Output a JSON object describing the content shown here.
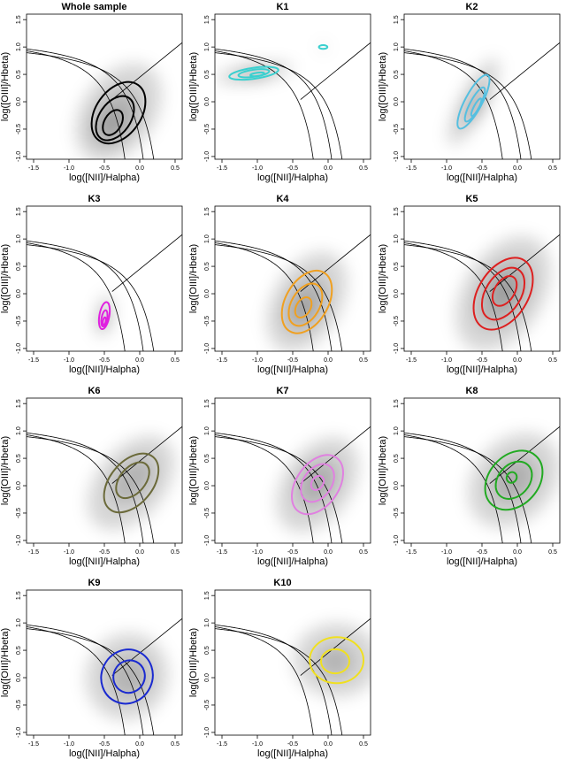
{
  "figure": {
    "xlabel": "log([NII]/Halpha)",
    "ylabel": "log([OIII]/Hbeta)"
  },
  "chart_data": [
    {
      "type": "bpt-density-contour",
      "title": "Whole sample",
      "xlabel": "log([NII]/Halpha)",
      "ylabel": "log([OIII]/Hbeta)",
      "xlim": [
        -1.6,
        0.6
      ],
      "ylim": [
        -1.05,
        1.6
      ],
      "xticks": [
        -1.5,
        -1.0,
        -0.5,
        0.0,
        0.5
      ],
      "yticks": [
        -1.0,
        -0.5,
        0.0,
        0.5,
        1.0,
        1.5
      ],
      "contour_color": "#000000",
      "contours": [
        {
          "cx": -0.3,
          "cy": -0.2,
          "rx": 0.32,
          "ry": 0.62,
          "angle": 35
        },
        {
          "cx": -0.35,
          "cy": -0.3,
          "rx": 0.22,
          "ry": 0.45,
          "angle": 35
        },
        {
          "cx": -0.38,
          "cy": -0.38,
          "rx": 0.12,
          "ry": 0.25,
          "angle": 30
        }
      ]
    },
    {
      "type": "bpt-density-contour",
      "title": "K1",
      "xlabel": "log([NII]/Halpha)",
      "ylabel": "log([OIII]/Hbeta)",
      "xlim": [
        -1.6,
        0.6
      ],
      "ylim": [
        -1.05,
        1.6
      ],
      "xticks": [
        -1.5,
        -1.0,
        -0.5,
        0.0,
        0.5
      ],
      "yticks": [
        -1.0,
        -0.5,
        0.0,
        0.5,
        1.0,
        1.5
      ],
      "contour_color": "#3ad0cf",
      "contours": [
        {
          "cx": -1.05,
          "cy": 0.52,
          "rx": 0.35,
          "ry": 0.1,
          "angle": -8
        },
        {
          "cx": -1.05,
          "cy": 0.52,
          "rx": 0.22,
          "ry": 0.065,
          "angle": -8
        },
        {
          "cx": -1.0,
          "cy": 0.5,
          "rx": 0.1,
          "ry": 0.03,
          "angle": -8
        },
        {
          "cx": -0.07,
          "cy": 1.0,
          "rx": 0.06,
          "ry": 0.035,
          "angle": 0
        }
      ]
    },
    {
      "type": "bpt-density-contour",
      "title": "K2",
      "xlabel": "log([NII]/Halpha)",
      "ylabel": "log([OIII]/Hbeta)",
      "xlim": [
        -1.6,
        0.6
      ],
      "ylim": [
        -1.05,
        1.6
      ],
      "xticks": [
        -1.5,
        -1.0,
        -0.5,
        0.0,
        0.5
      ],
      "yticks": [
        -1.0,
        -0.5,
        0.0,
        0.5,
        1.0,
        1.5
      ],
      "contour_color": "#55bfe0",
      "contours": [
        {
          "cx": -0.62,
          "cy": 0.0,
          "rx": 0.12,
          "ry": 0.55,
          "angle": 28
        },
        {
          "cx": -0.6,
          "cy": -0.05,
          "rx": 0.07,
          "ry": 0.35,
          "angle": 28
        },
        {
          "cx": -0.58,
          "cy": -0.1,
          "rx": 0.035,
          "ry": 0.18,
          "angle": 28
        }
      ]
    },
    {
      "type": "bpt-density-contour",
      "title": "K3",
      "xlabel": "log([NII]/Halpha)",
      "ylabel": "log([OIII]/Hbeta)",
      "xlim": [
        -1.6,
        0.6
      ],
      "ylim": [
        -1.05,
        1.6
      ],
      "xticks": [
        -1.5,
        -1.0,
        -0.5,
        0.0,
        0.5
      ],
      "yticks": [
        -1.0,
        -0.5,
        0.0,
        0.5,
        1.0,
        1.5
      ],
      "contour_color": "#e020e0",
      "contours": [
        {
          "cx": -0.5,
          "cy": -0.4,
          "rx": 0.07,
          "ry": 0.25,
          "angle": 10
        },
        {
          "cx": -0.5,
          "cy": -0.45,
          "rx": 0.04,
          "ry": 0.15,
          "angle": 10
        },
        {
          "cx": -0.5,
          "cy": -0.5,
          "rx": 0.02,
          "ry": 0.07,
          "angle": 10
        }
      ]
    },
    {
      "type": "bpt-density-contour",
      "title": "K4",
      "xlabel": "log([NII]/Halpha)",
      "ylabel": "log([OIII]/Hbeta)",
      "xlim": [
        -1.6,
        0.6
      ],
      "ylim": [
        -1.05,
        1.6
      ],
      "xticks": [
        -1.5,
        -1.0,
        -0.5,
        0.0,
        0.5
      ],
      "yticks": [
        -1.0,
        -0.5,
        0.0,
        0.5,
        1.0,
        1.5
      ],
      "contour_color": "#f0a020",
      "contours": [
        {
          "cx": -0.3,
          "cy": -0.15,
          "rx": 0.3,
          "ry": 0.62,
          "angle": 30
        },
        {
          "cx": -0.32,
          "cy": -0.2,
          "rx": 0.2,
          "ry": 0.42,
          "angle": 30
        },
        {
          "cx": -0.35,
          "cy": -0.25,
          "rx": 0.1,
          "ry": 0.2,
          "angle": 30
        }
      ]
    },
    {
      "type": "bpt-density-contour",
      "title": "K5",
      "xlabel": "log([NII]/Halpha)",
      "ylabel": "log([OIII]/Hbeta)",
      "xlim": [
        -1.6,
        0.6
      ],
      "ylim": [
        -1.05,
        1.6
      ],
      "xticks": [
        -1.5,
        -1.0,
        -0.5,
        0.0,
        0.5
      ],
      "yticks": [
        -1.0,
        -0.5,
        0.0,
        0.5,
        1.0,
        1.5
      ],
      "contour_color": "#dd2020",
      "contours": [
        {
          "cx": -0.2,
          "cy": 0.0,
          "rx": 0.35,
          "ry": 0.72,
          "angle": 32
        },
        {
          "cx": -0.2,
          "cy": 0.0,
          "rx": 0.25,
          "ry": 0.52,
          "angle": 32
        },
        {
          "cx": -0.18,
          "cy": 0.05,
          "rx": 0.14,
          "ry": 0.3,
          "angle": 32
        }
      ]
    },
    {
      "type": "bpt-density-contour",
      "title": "K6",
      "xlabel": "log([NII]/Halpha)",
      "ylabel": "log([OIII]/Hbeta)",
      "xlim": [
        -1.6,
        0.6
      ],
      "ylim": [
        -1.05,
        1.6
      ],
      "xticks": [
        -1.5,
        -1.0,
        -0.5,
        0.0,
        0.5
      ],
      "yticks": [
        -1.0,
        -0.5,
        0.0,
        0.5,
        1.0,
        1.5
      ],
      "contour_color": "#6b6a3a",
      "contours": [
        {
          "cx": -0.12,
          "cy": 0.05,
          "rx": 0.3,
          "ry": 0.62,
          "angle": 40
        },
        {
          "cx": -0.1,
          "cy": 0.1,
          "rx": 0.18,
          "ry": 0.38,
          "angle": 40
        }
      ]
    },
    {
      "type": "bpt-density-contour",
      "title": "K7",
      "xlabel": "log([NII]/Halpha)",
      "ylabel": "log([OIII]/Hbeta)",
      "xlim": [
        -1.6,
        0.6
      ],
      "ylim": [
        -1.05,
        1.6
      ],
      "xticks": [
        -1.5,
        -1.0,
        -0.5,
        0.0,
        0.5
      ],
      "yticks": [
        -1.0,
        -0.5,
        0.0,
        0.5,
        1.0,
        1.5
      ],
      "contour_color": "#e080e0",
      "contours": [
        {
          "cx": -0.15,
          "cy": 0.02,
          "rx": 0.3,
          "ry": 0.6,
          "angle": 35
        },
        {
          "cx": -0.15,
          "cy": 0.05,
          "rx": 0.2,
          "ry": 0.38,
          "angle": 35
        },
        {
          "cx": -0.15,
          "cy": 0.05,
          "rx": 0.08,
          "ry": 0.14,
          "angle": 35
        }
      ]
    },
    {
      "type": "bpt-density-contour",
      "title": "K8",
      "xlabel": "log([NII]/Halpha)",
      "ylabel": "log([OIII]/Hbeta)",
      "xlim": [
        -1.6,
        0.6
      ],
      "ylim": [
        -1.05,
        1.6
      ],
      "xticks": [
        -1.5,
        -1.0,
        -0.5,
        0.0,
        0.5
      ],
      "yticks": [
        -1.0,
        -0.5,
        0.0,
        0.5,
        1.0,
        1.5
      ],
      "contour_color": "#22aa22",
      "contours": [
        {
          "cx": -0.05,
          "cy": 0.1,
          "rx": 0.35,
          "ry": 0.6,
          "angle": 42
        },
        {
          "cx": -0.05,
          "cy": 0.1,
          "rx": 0.22,
          "ry": 0.38,
          "angle": 42
        },
        {
          "cx": -0.08,
          "cy": 0.15,
          "rx": 0.07,
          "ry": 0.1,
          "angle": 30
        }
      ]
    },
    {
      "type": "bpt-density-contour",
      "title": "K9",
      "xlabel": "log([NII]/Halpha)",
      "ylabel": "log([OIII]/Hbeta)",
      "xlim": [
        -1.6,
        0.6
      ],
      "ylim": [
        -1.05,
        1.6
      ],
      "xticks": [
        -1.5,
        -1.0,
        -0.5,
        0.0,
        0.5
      ],
      "yticks": [
        -1.0,
        -0.5,
        0.0,
        0.5,
        1.0,
        1.5
      ],
      "contour_color": "#1a2ad0",
      "contours": [
        {
          "cx": -0.18,
          "cy": 0.02,
          "rx": 0.36,
          "ry": 0.5,
          "angle": 25
        },
        {
          "cx": -0.15,
          "cy": 0.02,
          "rx": 0.22,
          "ry": 0.3,
          "angle": 25
        }
      ]
    },
    {
      "type": "bpt-density-contour",
      "title": "K10",
      "xlabel": "log([NII]/Halpha)",
      "ylabel": "log([OIII]/Hbeta)",
      "xlim": [
        -1.6,
        0.6
      ],
      "ylim": [
        -1.05,
        1.6
      ],
      "xticks": [
        -1.5,
        -1.0,
        -0.5,
        0.0,
        0.5
      ],
      "yticks": [
        -1.0,
        -0.5,
        0.0,
        0.5,
        1.0,
        1.5
      ],
      "contour_color": "#f0e020",
      "contours": [
        {
          "cx": 0.12,
          "cy": 0.32,
          "rx": 0.38,
          "ry": 0.42,
          "angle": 0
        },
        {
          "cx": 0.1,
          "cy": 0.3,
          "rx": 0.2,
          "ry": 0.22,
          "angle": 0
        }
      ]
    }
  ]
}
